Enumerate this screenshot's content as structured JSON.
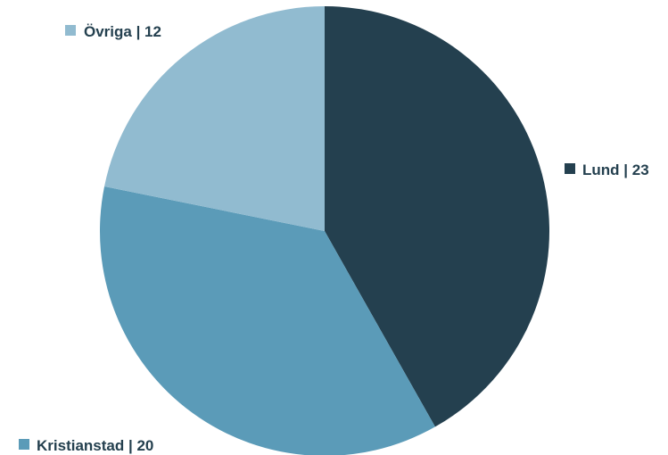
{
  "chart_data": {
    "type": "pie",
    "start_angle_deg": 0,
    "direction": "clockwise",
    "slices": [
      {
        "label": "Lund",
        "value": 23,
        "display": "Lund | 23",
        "color": "#24404f"
      },
      {
        "label": "Kristianstad",
        "value": 20,
        "display": "Kristianstad | 20",
        "color": "#5b9bb8"
      },
      {
        "label": "Övriga",
        "value": 12,
        "display": "Övriga | 12",
        "color": "#91bbd0"
      }
    ]
  },
  "colors": {
    "text": "#24404f",
    "background": "#ffffff"
  }
}
